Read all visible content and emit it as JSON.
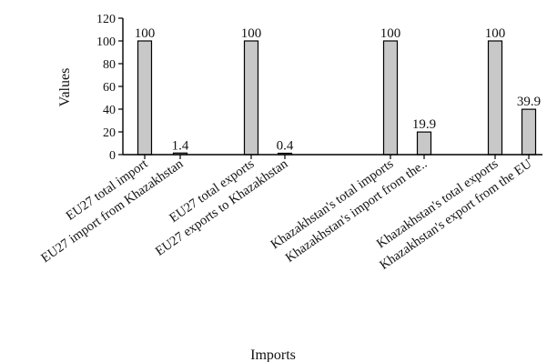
{
  "chart_data": {
    "type": "bar",
    "categories": [
      "EU27 total import",
      "EU27 import from Khazakhstan",
      "EU27 total exports",
      "EU27 exports to Khazakhstan",
      "Khazakhstan's total imports",
      "Khazakhstan's import from the..",
      "Khazakhstan's total exports",
      "Khazakhstan's export from the EU"
    ],
    "values": [
      100,
      1.4,
      100,
      0.4,
      100,
      19.9,
      100,
      39.9
    ],
    "data_labels": [
      "100",
      "1.4",
      "100",
      "0.4",
      "100",
      "19.9",
      "100",
      "39.9"
    ],
    "xlabel": "Imports",
    "ylabel": "Values",
    "ylim": [
      0,
      120
    ],
    "yticks": [
      "0",
      "20",
      "40",
      "60",
      "80",
      "100",
      "120"
    ],
    "grid": false,
    "colors": {
      "bar_fill": "#c8c8c8",
      "bar_stroke": "#000000",
      "axis": "#000000"
    }
  }
}
